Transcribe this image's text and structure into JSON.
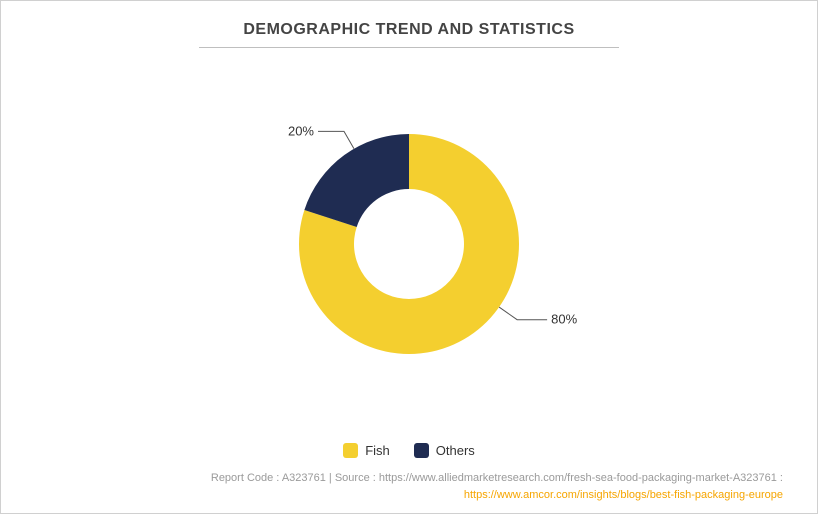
{
  "title": "DEMOGRAPHIC TREND AND STATISTICS",
  "title_fontsize": 14,
  "title_color": "#444444",
  "background_color": "#ffffff",
  "border_color": "#d0d0d0",
  "chart": {
    "type": "donut",
    "outer_radius": 110,
    "inner_radius": 55,
    "start_angle_deg": -90,
    "slices": [
      {
        "name": "Fish",
        "value": 80,
        "label": "80%",
        "color": "#f4cf2f"
      },
      {
        "name": "Others",
        "value": 20,
        "label": "20%",
        "color": "#1f2c52"
      }
    ],
    "label_fontsize": 13,
    "label_color": "#333333",
    "leader_color": "#555555"
  },
  "legend": {
    "items": [
      {
        "label": "Fish",
        "color": "#f4cf2f"
      },
      {
        "label": "Others",
        "color": "#1f2c52"
      }
    ],
    "fontsize": 13
  },
  "footer": {
    "line1_prefix": "Report Code : ",
    "report_code": "A323761",
    "line1_mid": "  |  Source : ",
    "source_text": "https://www.alliedmarketresearch.com/fresh-sea-food-packaging-market-A323761",
    "line1_suffix": " :",
    "link_text": "https://www.amcor.com/insights/blogs/best-fish-packaging-europe",
    "text_color": "#9a9a9a",
    "link_color": "#f6a500",
    "fontsize": 11
  }
}
